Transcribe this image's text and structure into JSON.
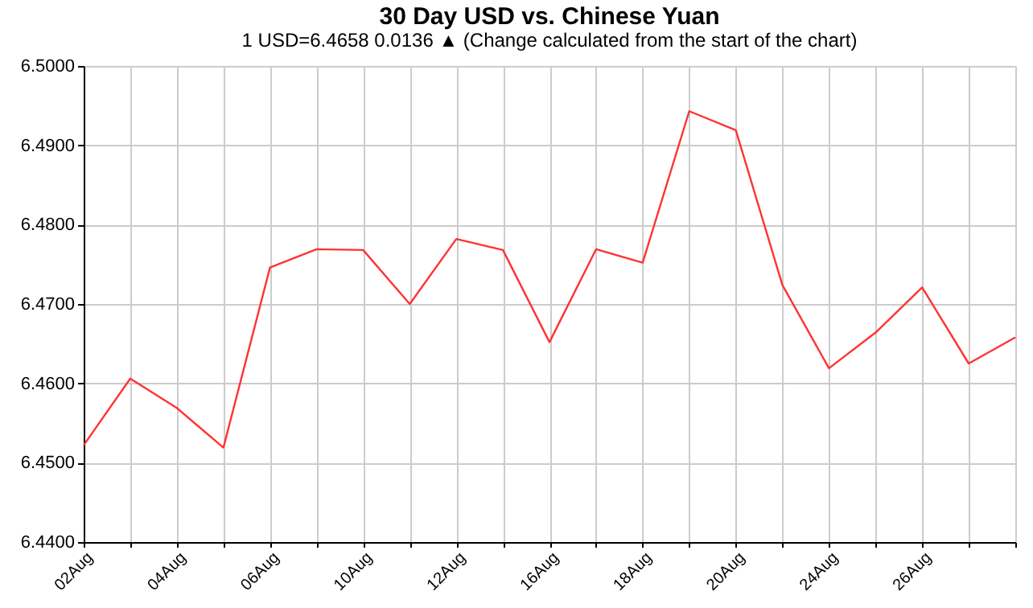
{
  "chart_data": {
    "type": "line",
    "title": "30 Day USD vs. Chinese Yuan",
    "subtitle": "1 USD=6.4658  0.0136 ▲ (Change calculated from the start of the chart)",
    "categories": [
      "02Aug",
      null,
      "04Aug",
      null,
      "06Aug",
      null,
      "10Aug",
      null,
      "12Aug",
      null,
      "16Aug",
      null,
      "18Aug",
      null,
      "20Aug",
      null,
      "24Aug",
      null,
      "26Aug",
      null,
      null
    ],
    "series": [
      {
        "color": "#ff3333",
        "values": [
          6.4522,
          6.4606,
          6.4569,
          6.4519,
          6.4746,
          6.4769,
          6.4768,
          6.47,
          6.4782,
          6.4768,
          6.4652,
          6.4769,
          6.4752,
          6.4943,
          6.4919,
          6.4724,
          6.4619,
          6.4664,
          6.4721,
          6.4625,
          6.4658
        ]
      }
    ],
    "ylim": [
      6.44,
      6.5
    ],
    "yticks": [
      {
        "value": 6.44,
        "label": "6.4400"
      },
      {
        "value": 6.45,
        "label": "6.4500"
      },
      {
        "value": 6.46,
        "label": "6.4600"
      },
      {
        "value": 6.47,
        "label": "6.4700"
      },
      {
        "value": 6.48,
        "label": "6.4800"
      },
      {
        "value": 6.49,
        "label": "6.4900"
      },
      {
        "value": 6.5,
        "label": "6.5000"
      }
    ],
    "grid": true,
    "legend": false,
    "marker": "none",
    "line_style": "solid"
  }
}
